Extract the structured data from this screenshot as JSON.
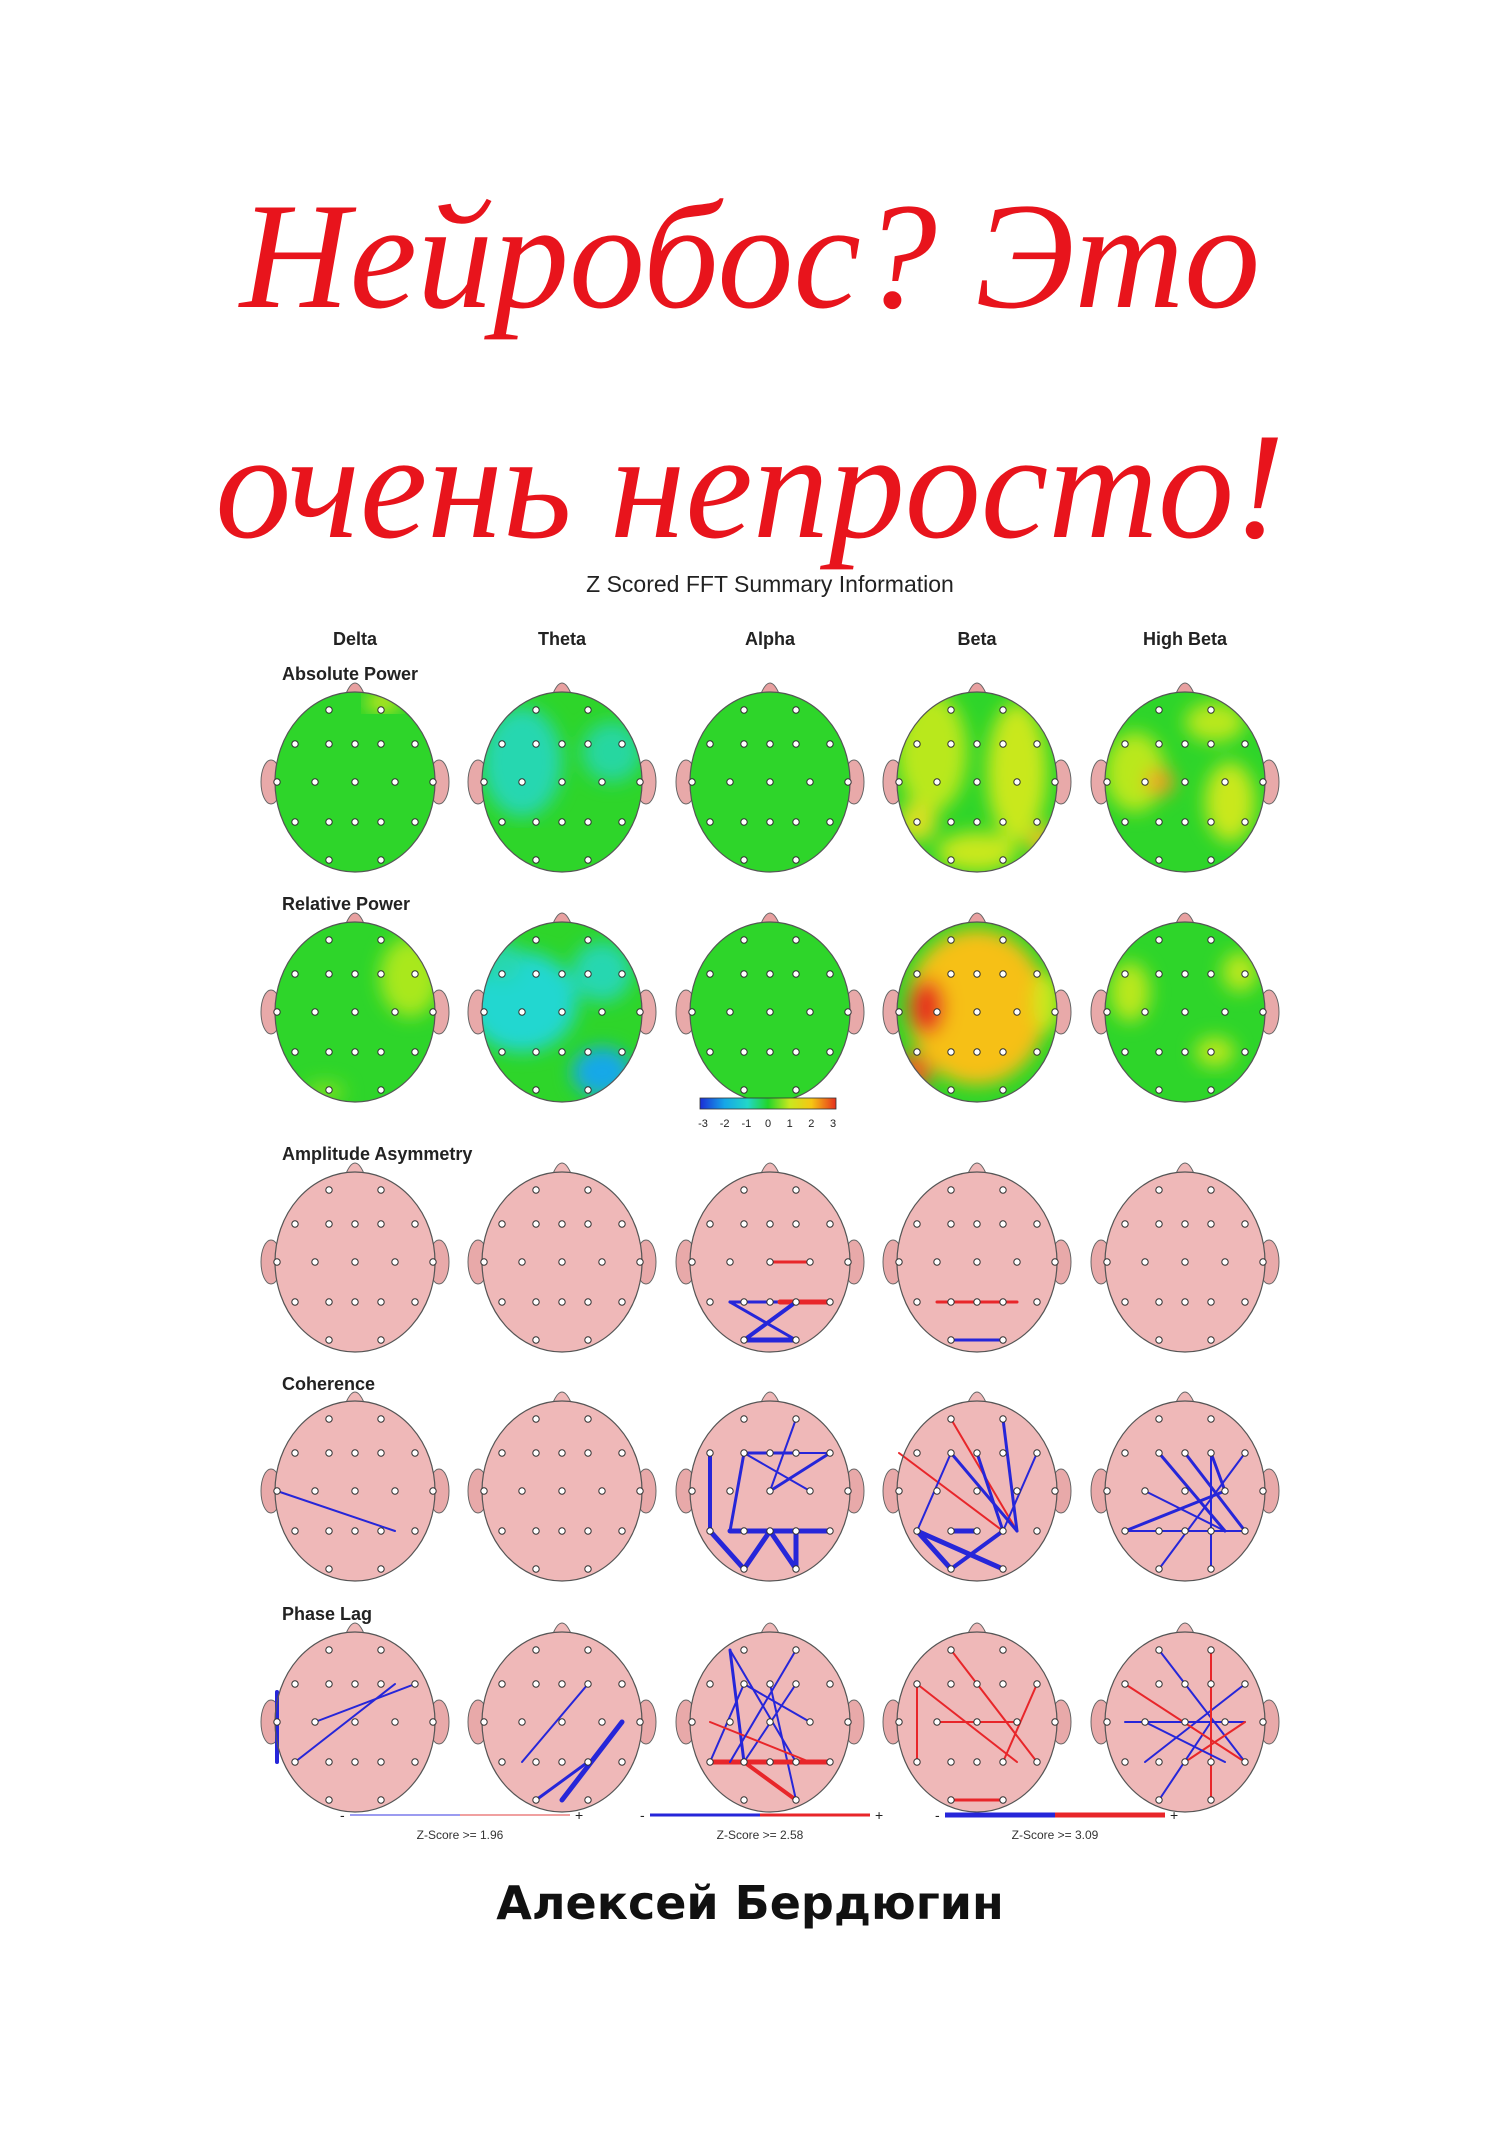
{
  "cover": {
    "title_line1": "Нейробос? Это",
    "title_line2": "очень непросто!",
    "author": "Алексей Бердюгин"
  },
  "figure": {
    "title": "Z Scored FFT Summary Information",
    "bands": [
      "Delta",
      "Theta",
      "Alpha",
      "Beta",
      "High Beta"
    ],
    "rows": [
      "Absolute Power",
      "Relative Power",
      "Amplitude Asymmetry",
      "Coherence",
      "Phase Lag"
    ],
    "color_scale": {
      "ticks": [
        "-3",
        "-2",
        "-1",
        "0",
        "1",
        "2",
        "3"
      ],
      "colors": [
        "#1b2dd6",
        "#16a6e8",
        "#22d7c8",
        "#22d52a",
        "#c9e81f",
        "#f6c614",
        "#e6311d"
      ]
    },
    "legends": [
      {
        "minus": "-",
        "plus": "+",
        "label": "Z-Score >= 1.96"
      },
      {
        "minus": "-",
        "plus": "+",
        "label": "Z-Score >= 2.58"
      },
      {
        "minus": "-",
        "plus": "+",
        "label": "Z-Score >= 3.09"
      }
    ],
    "colors": {
      "head_pink": "#efb8b8",
      "map_green": "#2ed52a",
      "neg_line": "#2626d9",
      "pos_line": "#e8262a",
      "title_red": "#e8141c"
    }
  }
}
